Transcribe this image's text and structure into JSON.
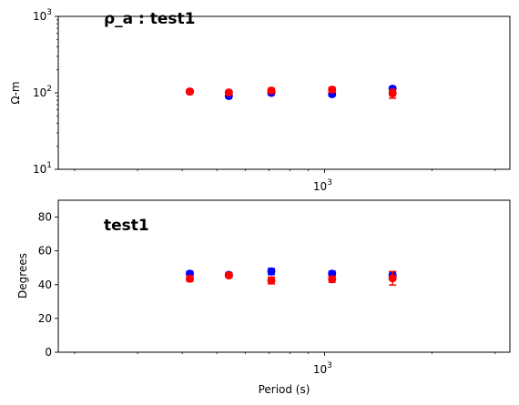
{
  "chart_data": [
    {
      "type": "scatter",
      "title": "ρ_a : test1",
      "xlabel": "",
      "ylabel": "Ω-m",
      "xscale": "log",
      "yscale": "log",
      "xlim": [
        180,
        3300
      ],
      "ylim": [
        10,
        1000
      ],
      "y_tick_labels": [
        {
          "value": 10,
          "base": "10",
          "exp": "1"
        },
        {
          "value": 100,
          "base": "10",
          "exp": "2"
        },
        {
          "value": 1000,
          "base": "10",
          "exp": "3"
        }
      ],
      "x_tick_labels": [
        {
          "value": 1000,
          "base": "10",
          "exp": "3"
        }
      ],
      "grid": false,
      "series": [
        {
          "color": "#0000ff",
          "marker": "square+circle",
          "x": [
            420,
            540,
            710,
            1050,
            1550
          ],
          "y": [
            104,
            91,
            100,
            96,
            113
          ],
          "err": [
            4,
            3,
            5,
            4,
            6
          ]
        },
        {
          "color": "#ff0000",
          "marker": "square+circle",
          "x": [
            420,
            540,
            710,
            1050,
            1550
          ],
          "y": [
            104,
            101,
            107,
            110,
            98
          ],
          "err": [
            5,
            5,
            7,
            8,
            13
          ]
        }
      ]
    },
    {
      "type": "scatter",
      "title": "test1",
      "xlabel": "Period (s)",
      "ylabel": "Degrees",
      "xscale": "log",
      "yscale": "linear",
      "xlim": [
        180,
        3300
      ],
      "ylim": [
        0,
        90
      ],
      "y_tick_labels": [
        {
          "value": 0,
          "base": "0",
          "exp": ""
        },
        {
          "value": 20,
          "base": "20",
          "exp": ""
        },
        {
          "value": 40,
          "base": "40",
          "exp": ""
        },
        {
          "value": 60,
          "base": "60",
          "exp": ""
        },
        {
          "value": 80,
          "base": "80",
          "exp": ""
        }
      ],
      "x_tick_labels": [
        {
          "value": 1000,
          "base": "10",
          "exp": "3"
        }
      ],
      "grid": false,
      "series": [
        {
          "color": "#0000ff",
          "marker": "square+circle",
          "x": [
            420,
            540,
            710,
            1050,
            1550
          ],
          "y": [
            46.5,
            45.8,
            47.8,
            46.5,
            45.5
          ],
          "err": [
            1.2,
            1.2,
            1.8,
            1.5,
            2
          ]
        },
        {
          "color": "#ff0000",
          "marker": "square+circle",
          "x": [
            420,
            540,
            710,
            1050,
            1550
          ],
          "y": [
            43.5,
            45.5,
            42.5,
            43.2,
            43.8
          ],
          "err": [
            1.5,
            1.2,
            2,
            1.8,
            4
          ]
        }
      ]
    }
  ]
}
